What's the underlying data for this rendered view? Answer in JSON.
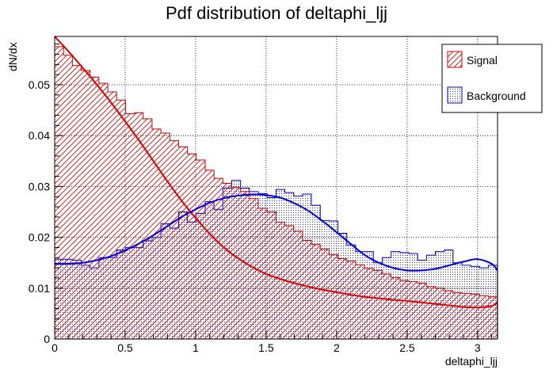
{
  "chart_data": {
    "type": "bar",
    "title": "Pdf distribution of deltaphi_ljj",
    "xlabel": "deltaphi_ljj",
    "ylabel": "dN/dx",
    "xlim": [
      0,
      3.1416
    ],
    "ylim": [
      0,
      0.0595
    ],
    "xticks": [
      0,
      0.5,
      1,
      1.5,
      2,
      2.5,
      3
    ],
    "xtick_labels": [
      "0",
      "0.5",
      "1",
      "1.5",
      "2",
      "2.5",
      "3"
    ],
    "yticks": [
      0,
      0.01,
      0.02,
      0.03,
      0.04,
      0.05
    ],
    "ytick_labels": [
      "0",
      "0.01",
      "0.02",
      "0.03",
      "0.04",
      "0.05"
    ],
    "grid": true,
    "legend_position": "top-right",
    "bin_edges_start": 0,
    "bin_width": 0.0628,
    "series": [
      {
        "name": "Signal",
        "color": "#cc0000",
        "style": "hatched-histogram",
        "values": [
          0.0575,
          0.0558,
          0.0538,
          0.0528,
          0.0515,
          0.0503,
          0.0486,
          0.047,
          0.0443,
          0.0445,
          0.0433,
          0.0413,
          0.0405,
          0.039,
          0.0378,
          0.0364,
          0.0352,
          0.0332,
          0.0316,
          0.0306,
          0.0298,
          0.029,
          0.0276,
          0.0257,
          0.025,
          0.023,
          0.0223,
          0.0212,
          0.0194,
          0.0186,
          0.0177,
          0.0166,
          0.0158,
          0.0153,
          0.0146,
          0.0139,
          0.0135,
          0.0128,
          0.0121,
          0.0115,
          0.0113,
          0.011,
          0.0103,
          0.01,
          0.0095,
          0.0091,
          0.009,
          0.0088,
          0.0085,
          0.0083
        ]
      },
      {
        "name": "Background",
        "color": "#0000cc",
        "style": "dotted-histogram",
        "values": [
          0.0157,
          0.0157,
          0.0155,
          0.0145,
          0.014,
          0.016,
          0.016,
          0.0175,
          0.018,
          0.018,
          0.0193,
          0.02,
          0.0227,
          0.0218,
          0.025,
          0.023,
          0.0247,
          0.027,
          0.0255,
          0.0297,
          0.0312,
          0.0297,
          0.029,
          0.0286,
          0.0278,
          0.0294,
          0.0288,
          0.0281,
          0.0285,
          0.0263,
          0.0233,
          0.0232,
          0.0208,
          0.0185,
          0.0172,
          0.0172,
          0.015,
          0.016,
          0.0172,
          0.017,
          0.0168,
          0.0155,
          0.0165,
          0.0172,
          0.0175,
          0.015,
          0.0145,
          0.0143,
          0.014,
          0.0145
        ]
      }
    ],
    "fits": [
      {
        "series": "Signal",
        "color": "#dd0000",
        "x": [
          0,
          0.1,
          0.2,
          0.3,
          0.4,
          0.5,
          0.6,
          0.7,
          0.8,
          0.9,
          1.0,
          1.1,
          1.2,
          1.3,
          1.4,
          1.5,
          1.6,
          1.7,
          1.8,
          1.9,
          2.0,
          2.1,
          2.2,
          2.3,
          2.4,
          2.5,
          2.6,
          2.7,
          2.8,
          2.9,
          3.0,
          3.1,
          3.14
        ],
        "y": [
          0.0595,
          0.0565,
          0.0533,
          0.05,
          0.0465,
          0.0428,
          0.039,
          0.035,
          0.031,
          0.0272,
          0.0238,
          0.0207,
          0.018,
          0.0159,
          0.0142,
          0.0128,
          0.0118,
          0.011,
          0.0103,
          0.0097,
          0.0092,
          0.0087,
          0.0083,
          0.008,
          0.0077,
          0.0075,
          0.0072,
          0.0069,
          0.0066,
          0.0063,
          0.0062,
          0.0065,
          0.0071
        ]
      },
      {
        "series": "Background",
        "color": "#0000dd",
        "x": [
          0,
          0.1,
          0.2,
          0.3,
          0.4,
          0.5,
          0.6,
          0.7,
          0.8,
          0.9,
          1.0,
          1.1,
          1.2,
          1.3,
          1.4,
          1.5,
          1.6,
          1.7,
          1.8,
          1.9,
          2.0,
          2.1,
          2.2,
          2.3,
          2.4,
          2.5,
          2.6,
          2.7,
          2.8,
          2.9,
          3.0,
          3.1,
          3.14
        ],
        "y": [
          0.0148,
          0.0148,
          0.015,
          0.0155,
          0.0163,
          0.0174,
          0.0188,
          0.0204,
          0.0222,
          0.024,
          0.0255,
          0.0268,
          0.0277,
          0.0282,
          0.0284,
          0.0283,
          0.0278,
          0.0267,
          0.0252,
          0.0232,
          0.021,
          0.0187,
          0.0165,
          0.015,
          0.014,
          0.0135,
          0.0135,
          0.0138,
          0.0145,
          0.0152,
          0.0157,
          0.0148,
          0.0135
        ]
      }
    ]
  }
}
